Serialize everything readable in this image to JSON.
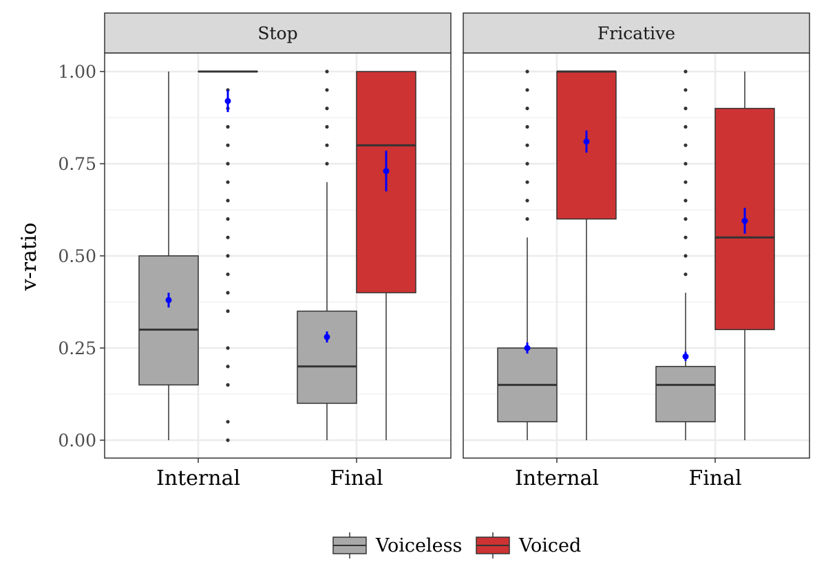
{
  "chart_data": {
    "type": "boxplot",
    "ylabel": "v-ratio",
    "xlabel": "",
    "ylim": [
      -0.05,
      1.05
    ],
    "y_ticks": [
      "0.00",
      "0.25",
      "0.50",
      "0.75",
      "1.00"
    ],
    "y_tick_values": [
      0,
      0.25,
      0.5,
      0.75,
      1.0
    ],
    "categories": [
      "Internal",
      "Final"
    ],
    "grid": true,
    "legend_position": "bottom",
    "series": [
      {
        "name": "Voiceless",
        "color": "#A9A9A9"
      },
      {
        "name": "Voiced",
        "color": "#CD3333"
      }
    ],
    "mean_color": "#0000FF",
    "panels": [
      {
        "strip": "Stop",
        "boxes": [
          {
            "category": "Internal",
            "series": "Voiceless",
            "lower_whisker": 0.0,
            "q1": 0.15,
            "median": 0.3,
            "q3": 0.5,
            "upper_whisker": 1.0,
            "mean": 0.38,
            "ci": [
              0.36,
              0.4
            ],
            "outliers": []
          },
          {
            "category": "Internal",
            "series": "Voiced",
            "lower_whisker": 1.0,
            "q1": 1.0,
            "median": 1.0,
            "q3": 1.0,
            "upper_whisker": 1.0,
            "mean": 0.92,
            "ci": [
              0.89,
              0.95
            ],
            "outliers": [
              0.0,
              0.05,
              0.15,
              0.2,
              0.25,
              0.35,
              0.4,
              0.45,
              0.5,
              0.55,
              0.6,
              0.65,
              0.7,
              0.75,
              0.8,
              0.85,
              0.9,
              0.95
            ]
          },
          {
            "category": "Final",
            "series": "Voiceless",
            "lower_whisker": 0.0,
            "q1": 0.1,
            "median": 0.2,
            "q3": 0.35,
            "upper_whisker": 0.7,
            "mean": 0.28,
            "ci": [
              0.265,
              0.295
            ],
            "outliers": [
              0.75,
              0.8,
              0.85,
              0.9,
              0.95,
              1.0
            ]
          },
          {
            "category": "Final",
            "series": "Voiced",
            "lower_whisker": 0.0,
            "q1": 0.4,
            "median": 0.8,
            "q3": 1.0,
            "upper_whisker": 1.0,
            "mean": 0.73,
            "ci": [
              0.675,
              0.785
            ],
            "outliers": []
          }
        ]
      },
      {
        "strip": "Fricative",
        "boxes": [
          {
            "category": "Internal",
            "series": "Voiceless",
            "lower_whisker": 0.0,
            "q1": 0.05,
            "median": 0.15,
            "q3": 0.25,
            "upper_whisker": 0.55,
            "mean": 0.25,
            "ci": [
              0.235,
              0.265
            ],
            "outliers": [
              0.6,
              0.65,
              0.7,
              0.75,
              0.8,
              0.85,
              0.9,
              0.95,
              1.0
            ]
          },
          {
            "category": "Internal",
            "series": "Voiced",
            "lower_whisker": 0.0,
            "q1": 0.6,
            "median": 1.0,
            "q3": 1.0,
            "upper_whisker": 1.0,
            "mean": 0.81,
            "ci": [
              0.78,
              0.84
            ],
            "outliers": []
          },
          {
            "category": "Final",
            "series": "Voiceless",
            "lower_whisker": 0.0,
            "q1": 0.05,
            "median": 0.15,
            "q3": 0.2,
            "upper_whisker": 0.4,
            "mean": 0.227,
            "ci": [
              0.215,
              0.24
            ],
            "outliers": [
              0.45,
              0.5,
              0.55,
              0.6,
              0.65,
              0.7,
              0.75,
              0.8,
              0.85,
              0.9,
              0.95,
              1.0
            ]
          },
          {
            "category": "Final",
            "series": "Voiced",
            "lower_whisker": 0.0,
            "q1": 0.3,
            "median": 0.55,
            "q3": 0.9,
            "upper_whisker": 1.0,
            "mean": 0.595,
            "ci": [
              0.56,
              0.63
            ],
            "outliers": []
          }
        ]
      }
    ]
  }
}
